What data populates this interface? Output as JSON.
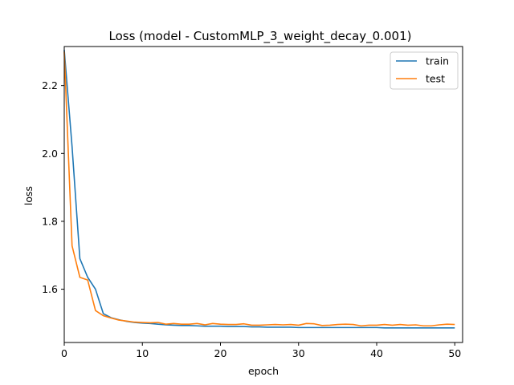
{
  "chart_data": {
    "type": "line",
    "title": "Loss (model - CustomMLP_3_weight_decay_0.001)",
    "xlabel": "epoch",
    "ylabel": "loss",
    "xlim": [
      0,
      51
    ],
    "ylim": [
      1.443,
      2.315
    ],
    "xticks": [
      0,
      10,
      20,
      30,
      40,
      50
    ],
    "yticks": [
      1.6,
      1.8,
      2.0,
      2.2
    ],
    "legend_position": "top-right",
    "grid": false,
    "series": [
      {
        "name": "train",
        "color": "#1f77b4",
        "x": [
          0,
          1,
          2,
          3,
          4,
          5,
          6,
          7,
          8,
          9,
          10,
          11,
          12,
          13,
          14,
          15,
          16,
          17,
          18,
          19,
          20,
          21,
          22,
          23,
          24,
          25,
          26,
          27,
          28,
          29,
          30,
          31,
          32,
          33,
          34,
          35,
          36,
          37,
          38,
          39,
          40,
          41,
          42,
          43,
          44,
          45,
          46,
          47,
          48,
          49,
          50
        ],
        "y": [
          2.305,
          2.02,
          1.69,
          1.635,
          1.6,
          1.528,
          1.516,
          1.51,
          1.505,
          1.502,
          1.5,
          1.499,
          1.497,
          1.495,
          1.494,
          1.493,
          1.493,
          1.492,
          1.491,
          1.491,
          1.491,
          1.49,
          1.49,
          1.49,
          1.489,
          1.489,
          1.488,
          1.488,
          1.488,
          1.488,
          1.487,
          1.487,
          1.487,
          1.487,
          1.487,
          1.487,
          1.487,
          1.487,
          1.487,
          1.487,
          1.487,
          1.486,
          1.486,
          1.486,
          1.486,
          1.486,
          1.486,
          1.486,
          1.486,
          1.486,
          1.486
        ]
      },
      {
        "name": "test",
        "color": "#ff7f0e",
        "x": [
          0,
          1,
          2,
          3,
          4,
          5,
          6,
          7,
          8,
          9,
          10,
          11,
          12,
          13,
          14,
          15,
          16,
          17,
          18,
          19,
          20,
          21,
          22,
          23,
          24,
          25,
          26,
          27,
          28,
          29,
          30,
          31,
          32,
          33,
          34,
          35,
          36,
          37,
          38,
          39,
          40,
          41,
          42,
          43,
          44,
          45,
          46,
          47,
          48,
          49,
          50
        ],
        "y": [
          2.3,
          1.728,
          1.635,
          1.627,
          1.537,
          1.522,
          1.515,
          1.509,
          1.506,
          1.503,
          1.502,
          1.501,
          1.502,
          1.497,
          1.499,
          1.497,
          1.497,
          1.499,
          1.495,
          1.499,
          1.497,
          1.496,
          1.496,
          1.498,
          1.494,
          1.494,
          1.495,
          1.496,
          1.495,
          1.496,
          1.494,
          1.499,
          1.498,
          1.493,
          1.494,
          1.496,
          1.497,
          1.496,
          1.492,
          1.494,
          1.494,
          1.496,
          1.494,
          1.496,
          1.494,
          1.495,
          1.492,
          1.492,
          1.495,
          1.497,
          1.496
        ]
      }
    ]
  }
}
